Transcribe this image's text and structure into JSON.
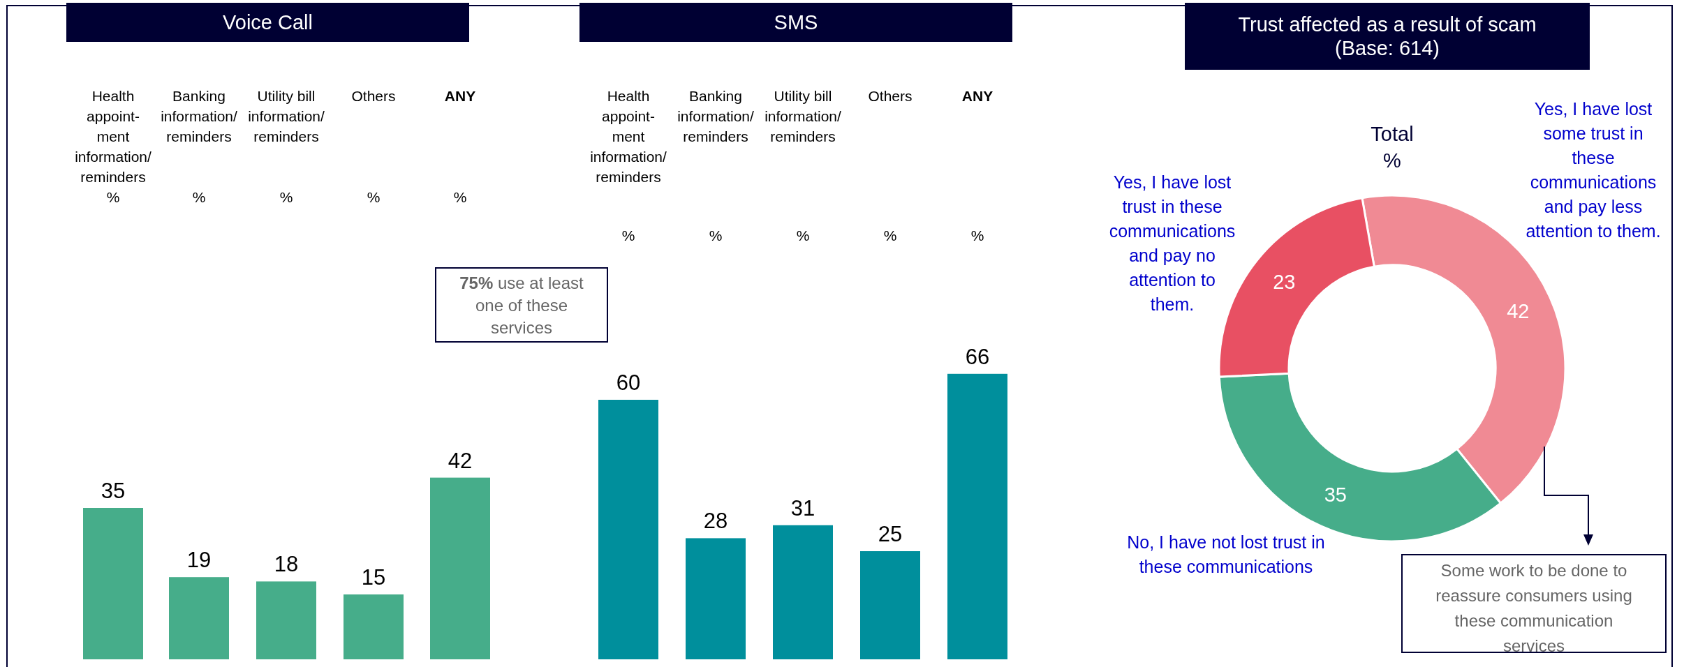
{
  "chart_data": [
    {
      "type": "bar",
      "title": "Voice Call",
      "xlabel": "%",
      "categories": [
        "Health\nappoint-\nment\ninformation/\nreminders",
        "Banking\ninformation/\nreminders",
        "Utility bill\ninformation/\nreminders",
        "Others",
        "ANY"
      ],
      "values": [
        35,
        19,
        18,
        15,
        42
      ],
      "color": "#46ad8a",
      "data_labels": true,
      "annotations": [
        "75% use at least\none of these\nservices"
      ]
    },
    {
      "type": "bar",
      "title": "SMS",
      "xlabel": "%",
      "categories": [
        "Health\nappoint-\nment\ninformation/\nreminders",
        "Banking\ninformation/\nreminders",
        "Utility bill\ninformation/\nreminders",
        "Others",
        "ANY"
      ],
      "values": [
        60,
        28,
        31,
        25,
        66
      ],
      "color": "#008f9c",
      "data_labels": true
    },
    {
      "type": "donut",
      "title": "Trust affected as a result of scam\n(Base: 614)",
      "subtitle": "Total\n%",
      "categories": [
        "Yes, I have lost\nsome trust in\nthese\ncommunications\nand pay less\nattention to them.",
        "No, I have not lost trust in\nthese communications",
        "Yes, I have lost\ntrust in these\ncommunications\nand pay no\nattention to\nthem."
      ],
      "values": [
        42,
        35,
        23
      ],
      "colors": [
        "#f08a94",
        "#46ad8a",
        "#e85063"
      ],
      "data_labels": true,
      "annotations": [
        "Some work to be done to\nreassure consumers using\nthese communication\nservices"
      ]
    }
  ]
}
